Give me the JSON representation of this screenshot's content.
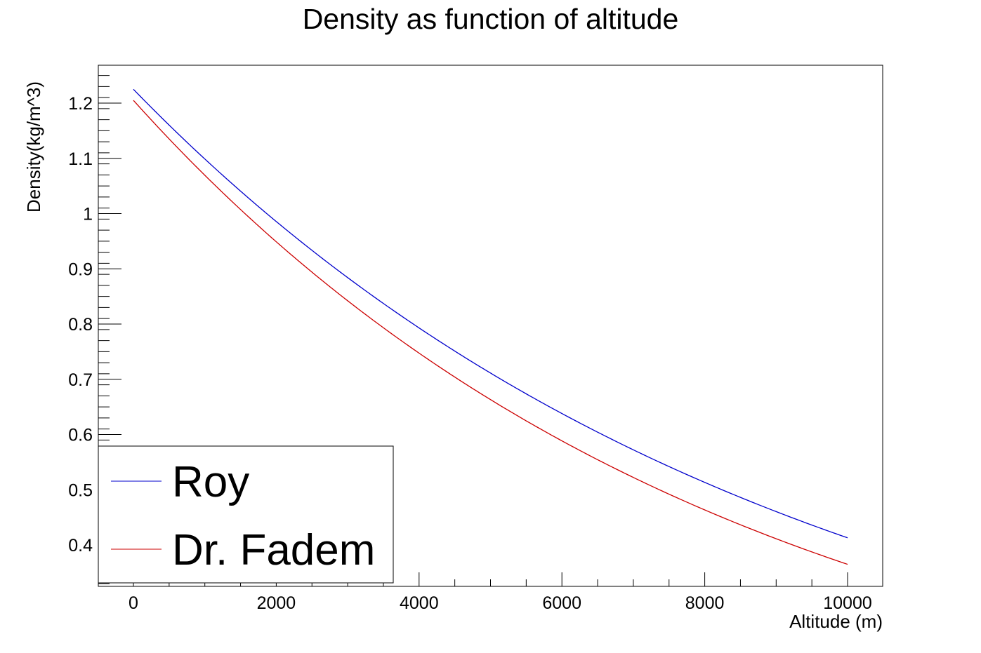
{
  "chart_data": {
    "type": "line",
    "title": "Density as function of altitude",
    "xlabel": "Altitude (m)",
    "ylabel": "Density(kg/m^3)",
    "xlim": [
      -500,
      11000
    ],
    "ylim": [
      0.33,
      1.27
    ],
    "x_ticks": [
      0,
      2000,
      4000,
      6000,
      8000,
      10000
    ],
    "x_tick_labels": [
      "0",
      "2000",
      "4000",
      "6000",
      "8000",
      "10000"
    ],
    "y_ticks": [
      0.4,
      0.5,
      0.6,
      0.7,
      0.8,
      0.9,
      1.0,
      1.1,
      1.2
    ],
    "y_tick_labels": [
      "0.4",
      "0.5",
      "0.6",
      "0.7",
      "0.8",
      "0.9",
      "1",
      "1.1",
      "1.2"
    ],
    "grid": false,
    "legend_position": "bottom-left",
    "x": [
      0,
      1000,
      2000,
      3000,
      4000,
      5000,
      6000,
      7000,
      8000,
      9000,
      10000
    ],
    "series": [
      {
        "name": "Roy",
        "color": "#0000cc",
        "values": [
          1.225,
          1.108,
          1.002,
          0.906,
          0.819,
          0.74,
          0.669,
          0.605,
          0.547,
          0.495,
          0.413
        ]
      },
      {
        "name": "Dr. Fadem",
        "color": "#cc0000",
        "values": [
          1.205,
          1.073,
          0.955,
          0.85,
          0.756,
          0.673,
          0.599,
          0.533,
          0.474,
          0.422,
          0.365
        ]
      }
    ]
  }
}
